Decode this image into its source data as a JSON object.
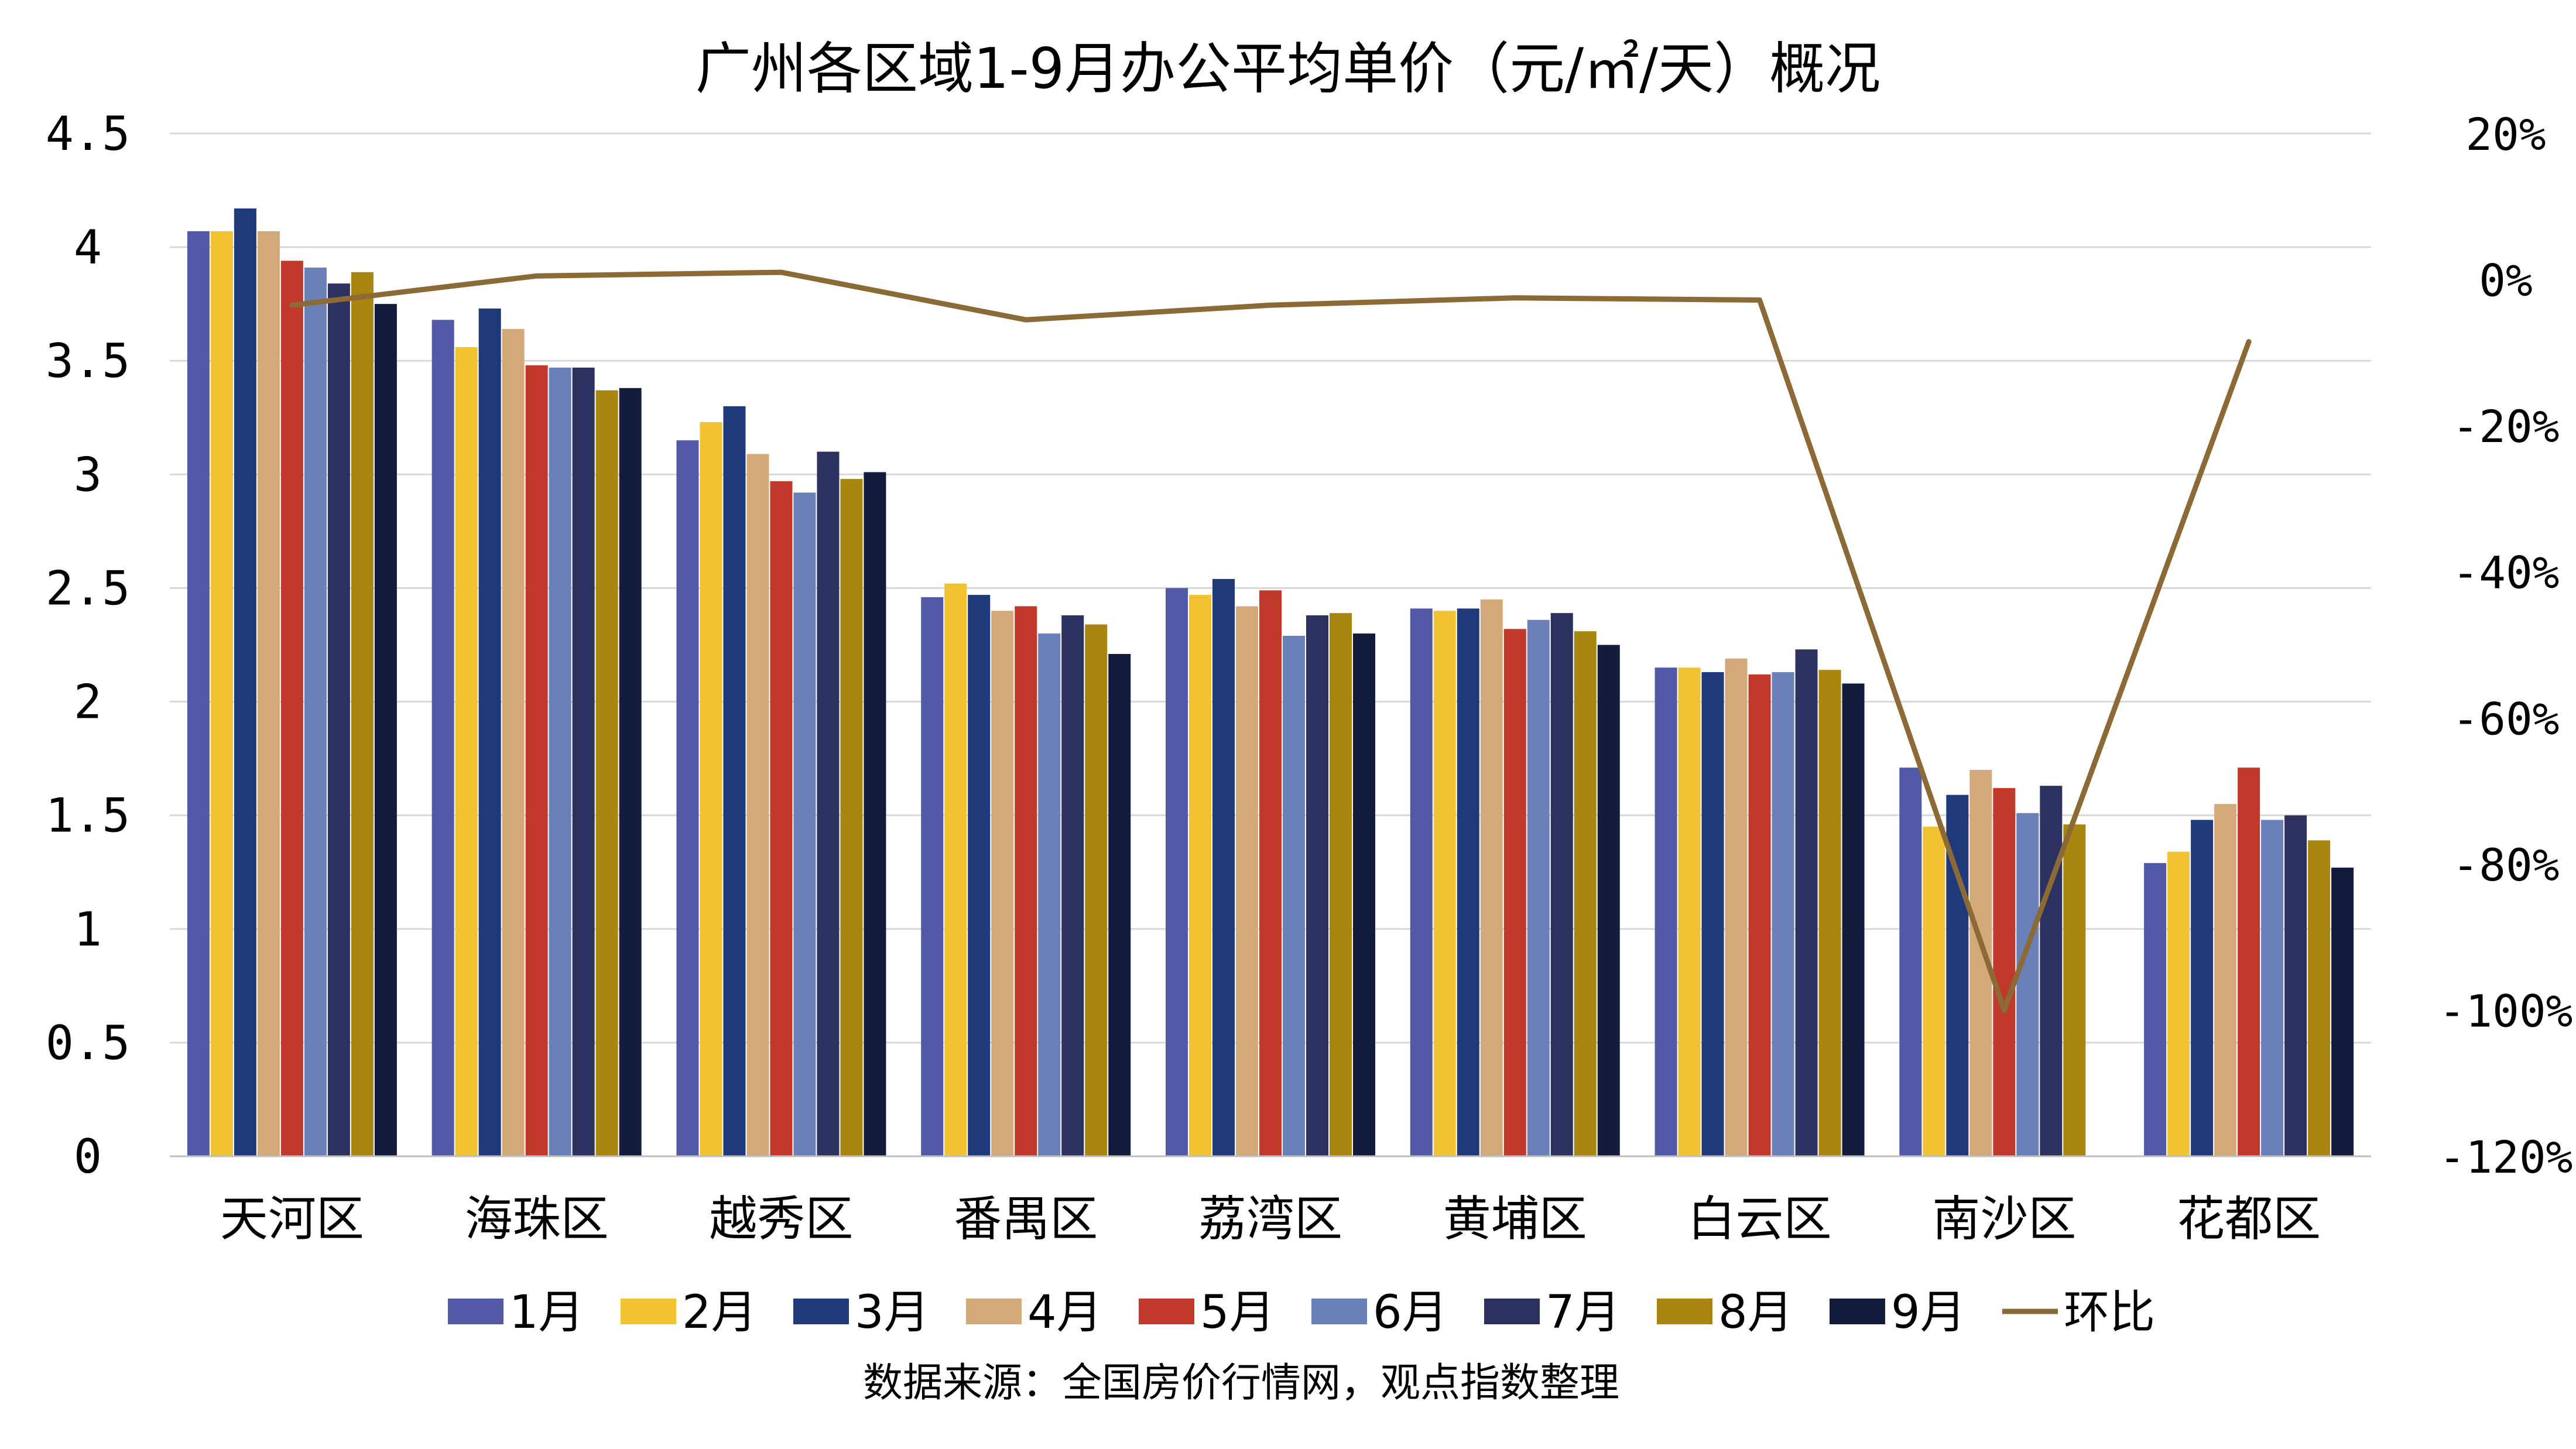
{
  "chart_data": {
    "type": "bar",
    "title": "广州各区域1-9月办公平均单价（元/㎡/天）概况",
    "categories": [
      "天河区",
      "海珠区",
      "越秀区",
      "番禺区",
      "荔湾区",
      "黄埔区",
      "白云区",
      "南沙区",
      "花都区"
    ],
    "series": [
      {
        "name": "1月",
        "color": "#5259A6",
        "values": [
          4.07,
          3.68,
          3.15,
          2.46,
          2.5,
          2.41,
          2.15,
          1.71,
          1.29
        ]
      },
      {
        "name": "2月",
        "color": "#F1C232",
        "values": [
          4.07,
          3.56,
          3.23,
          2.52,
          2.47,
          2.4,
          2.15,
          1.45,
          1.34
        ]
      },
      {
        "name": "3月",
        "color": "#1F3A7A",
        "values": [
          4.17,
          3.73,
          3.3,
          2.47,
          2.54,
          2.41,
          2.13,
          1.59,
          1.48
        ]
      },
      {
        "name": "4月",
        "color": "#D4A97A",
        "values": [
          4.07,
          3.64,
          3.09,
          2.4,
          2.42,
          2.45,
          2.19,
          1.7,
          1.55
        ]
      },
      {
        "name": "5月",
        "color": "#C0392B",
        "values": [
          3.94,
          3.48,
          2.97,
          2.42,
          2.49,
          2.32,
          2.12,
          1.62,
          1.71
        ]
      },
      {
        "name": "6月",
        "color": "#6B7FB8",
        "values": [
          3.91,
          3.47,
          2.92,
          2.3,
          2.29,
          2.36,
          2.13,
          1.51,
          1.48
        ]
      },
      {
        "name": "7月",
        "color": "#2D3160",
        "values": [
          3.84,
          3.47,
          3.1,
          2.38,
          2.38,
          2.39,
          2.23,
          1.63,
          1.5
        ]
      },
      {
        "name": "8月",
        "color": "#A8860F",
        "values": [
          3.89,
          3.37,
          2.98,
          2.34,
          2.39,
          2.31,
          2.14,
          1.46,
          1.39
        ]
      },
      {
        "name": "9月",
        "color": "#141C3E",
        "values": [
          3.75,
          3.38,
          3.01,
          2.21,
          2.3,
          2.25,
          2.08,
          null,
          1.27
        ]
      }
    ],
    "line_series": {
      "name": "环比",
      "color": "#8B6A35",
      "values": [
        -3.5,
        0.5,
        1.0,
        -5.5,
        -3.5,
        -2.5,
        -2.8,
        -100.0,
        -8.5
      ]
    },
    "ylim": [
      0,
      4.5
    ],
    "yticks": [
      "0",
      "0.5",
      "1",
      "1.5",
      "2",
      "2.5",
      "3",
      "3.5",
      "4",
      "4.5"
    ],
    "y2lim": [
      -120,
      20
    ],
    "y2ticks": [
      "-120%",
      "-100%",
      "-80%",
      "-60%",
      "-40%",
      "-20%",
      "0%",
      "20%"
    ],
    "grid": true,
    "legend_position": "bottom",
    "source_note": "数据来源：全国房价行情网，观点指数整理"
  }
}
